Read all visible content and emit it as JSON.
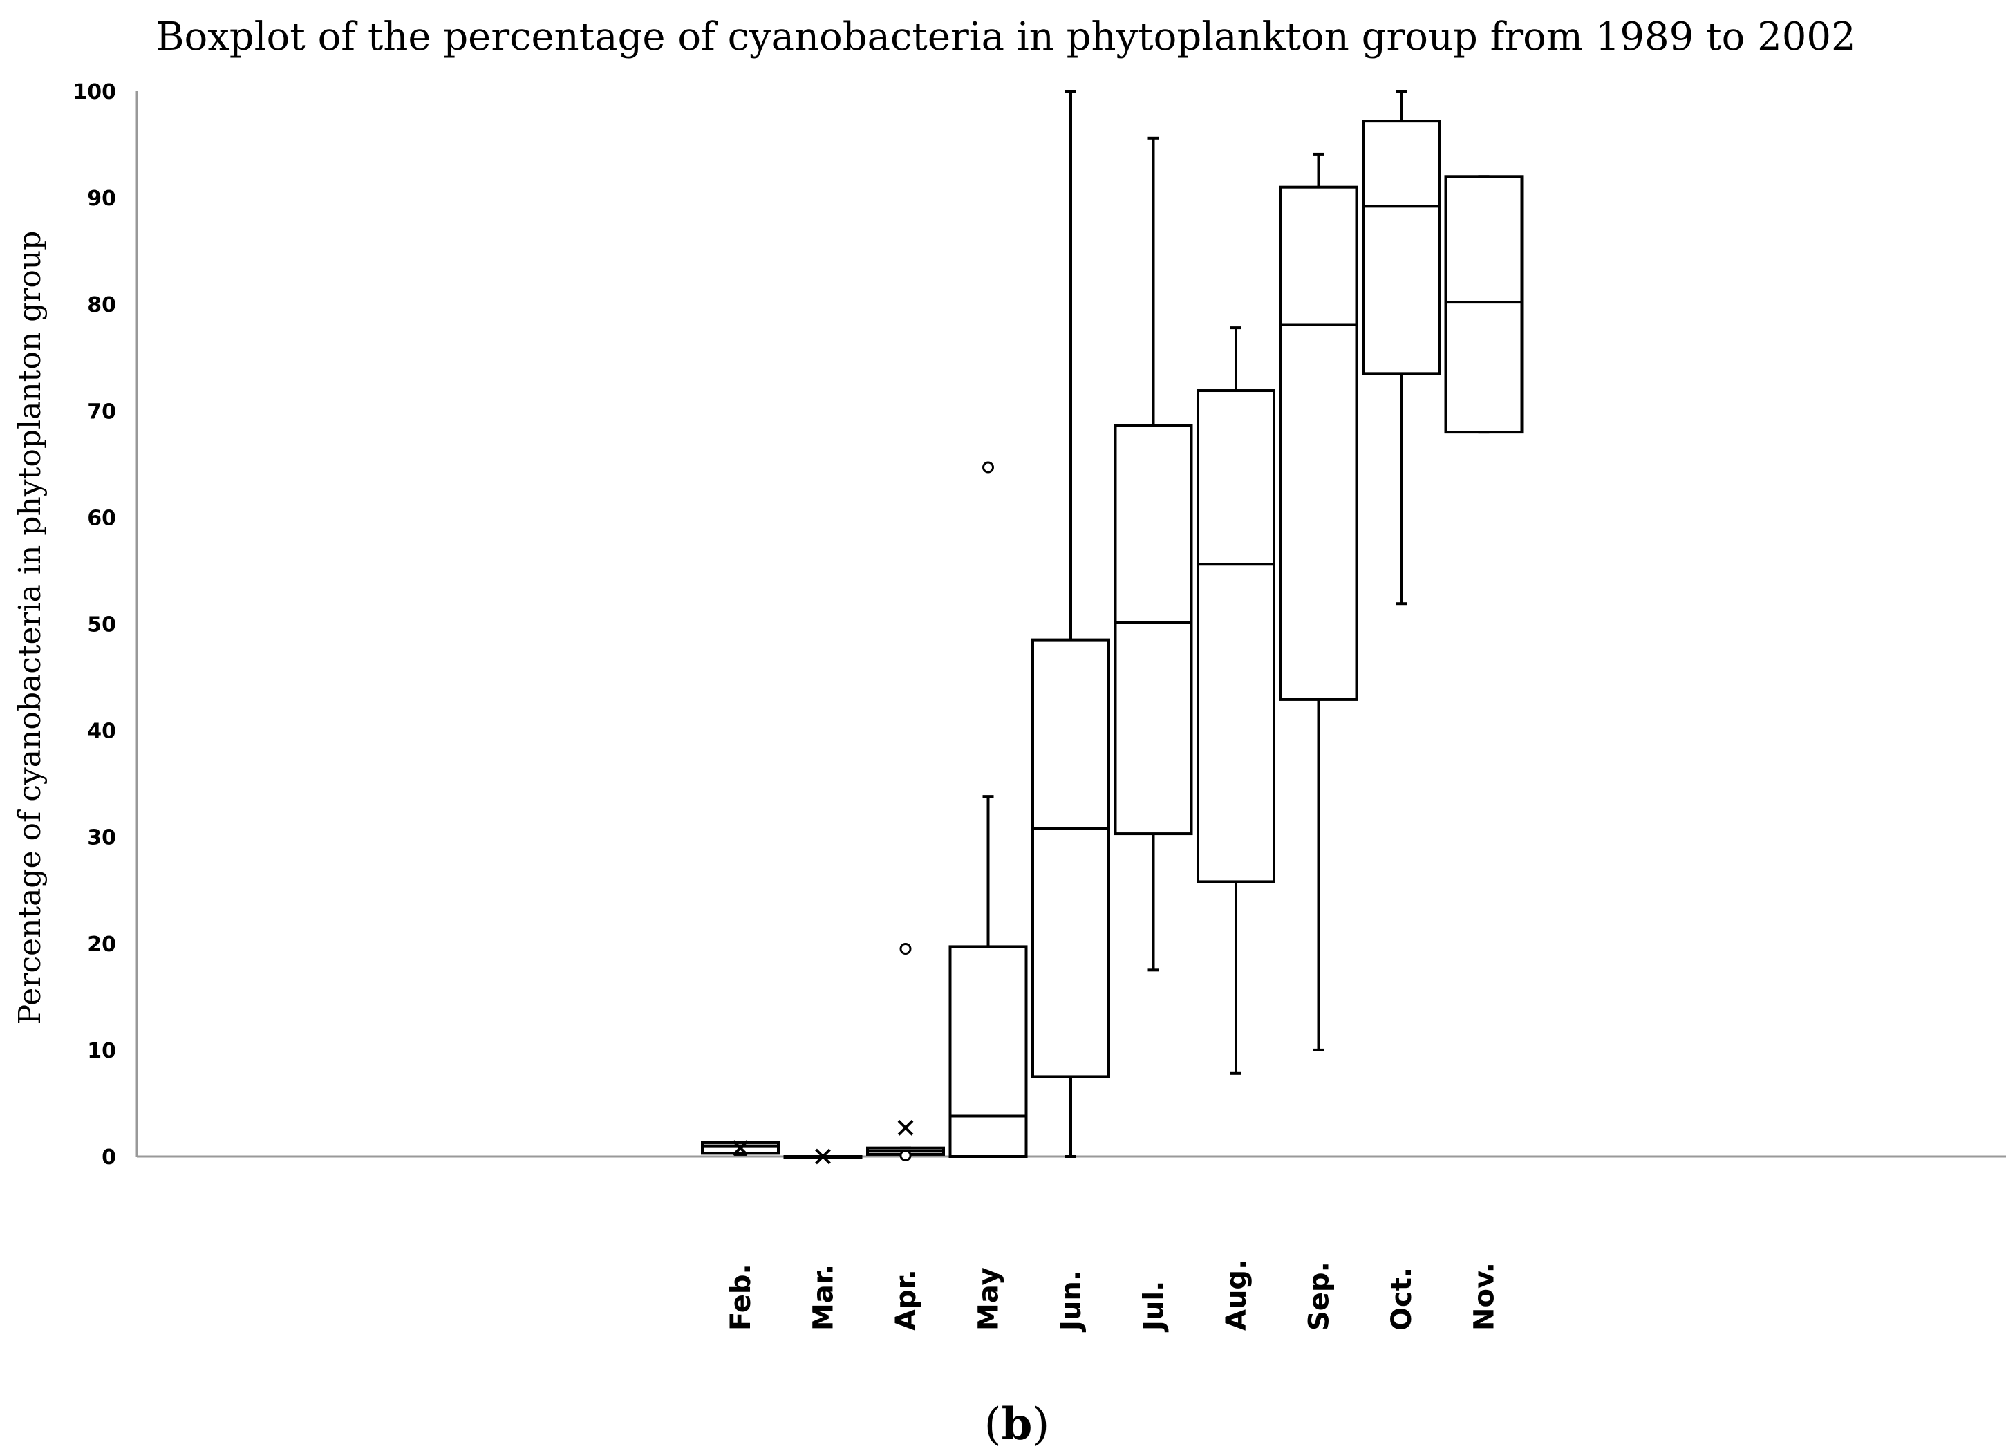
{
  "chart_data": {
    "type": "boxplot",
    "title": "Boxplot of the percentage of cyanobacteria in phytoplankton group from 1989 to 2002",
    "ylabel": "Percentage of cyanobacteria in  phytoplanton group",
    "xlabel": "",
    "ylim": [
      0,
      100
    ],
    "yticks": [
      0,
      10,
      20,
      30,
      40,
      50,
      60,
      70,
      80,
      90,
      100
    ],
    "grid": false,
    "categories": [
      "Feb.",
      "Mar.",
      "Apr.",
      "May",
      "Jun.",
      "Jul.",
      "Aug.",
      "Sep.",
      "Oct.",
      "Nov."
    ],
    "boxes": [
      {
        "min": 0.2,
        "q1": 0.3,
        "median": 1.0,
        "q3": 1.3,
        "max": 1.3,
        "mean": 0.8,
        "outliers": []
      },
      {
        "min": 0,
        "q1": 0,
        "median": 0,
        "q3": 0,
        "max": 0,
        "mean": 0,
        "outliers": []
      },
      {
        "min": 0.1,
        "q1": 0.2,
        "median": 0.5,
        "q3": 0.8,
        "max": 0.8,
        "mean": 2.7,
        "outliers": [
          19.5,
          0.1
        ]
      },
      {
        "min": 0,
        "q1": 0,
        "median": 3.8,
        "q3": 19.7,
        "max": 33.8,
        "outliers": [
          64.7
        ]
      },
      {
        "min": 0,
        "q1": 7.5,
        "median": 30.8,
        "q3": 48.5,
        "max": 100,
        "outliers": []
      },
      {
        "min": 17.5,
        "q1": 30.3,
        "median": 50.1,
        "q3": 68.6,
        "max": 95.6,
        "outliers": []
      },
      {
        "min": 7.8,
        "q1": 25.8,
        "median": 55.6,
        "q3": 71.9,
        "max": 77.8,
        "outliers": []
      },
      {
        "min": 10.0,
        "q1": 42.9,
        "median": 78.1,
        "q3": 91.0,
        "max": 94.1,
        "outliers": []
      },
      {
        "min": 51.9,
        "q1": 73.5,
        "median": 89.2,
        "q3": 97.2,
        "max": 100,
        "outliers": []
      },
      {
        "min": 68.0,
        "q1": 68.0,
        "median": 80.2,
        "q3": 92.0,
        "max": 92.0,
        "outliers": []
      }
    ]
  },
  "caption": {
    "open": "(",
    "letter": "b",
    "close": ")"
  }
}
